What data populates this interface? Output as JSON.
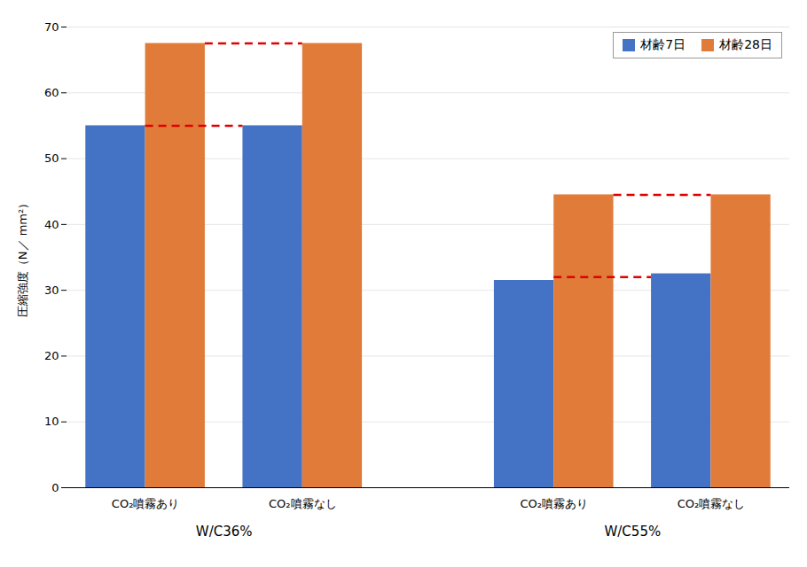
{
  "chart_data": {
    "type": "bar",
    "ylabel": "圧縮強度（N／ mm²）",
    "categories": [
      "CO₂噴霧あり",
      "CO₂噴霧なし",
      "CO₂噴霧あり",
      "CO₂噴霧なし"
    ],
    "category_group": [
      "W/C36%",
      "W/C36%",
      "W/C55%",
      "W/C55%"
    ],
    "series": [
      {
        "name": "材齢7日",
        "color": "#4472C4",
        "values": [
          55.0,
          55.0,
          31.5,
          32.5
        ]
      },
      {
        "name": "材齢28日",
        "color": "#E07B39",
        "values": [
          67.5,
          67.5,
          44.5,
          44.5
        ]
      }
    ],
    "reference_lines": [
      {
        "series": "材齢7日",
        "group": "W/C36%",
        "value": 55.0,
        "color": "#E00000",
        "line_style": "dashed"
      },
      {
        "series": "材齢28日",
        "group": "W/C36%",
        "value": 67.5,
        "color": "#E00000",
        "line_style": "dashed"
      },
      {
        "series": "材齢7日",
        "group": "W/C55%",
        "value": 32.0,
        "color": "#E00000",
        "line_style": "dashed"
      },
      {
        "series": "材齢28日",
        "group": "W/C55%",
        "value": 44.5,
        "color": "#E00000",
        "line_style": "dashed"
      }
    ],
    "ylim": [
      0,
      70
    ],
    "yticks": [
      0,
      10,
      20,
      30,
      40,
      50,
      60,
      70
    ],
    "grid": true,
    "legend": "upper right",
    "tick_labels": "y"
  }
}
